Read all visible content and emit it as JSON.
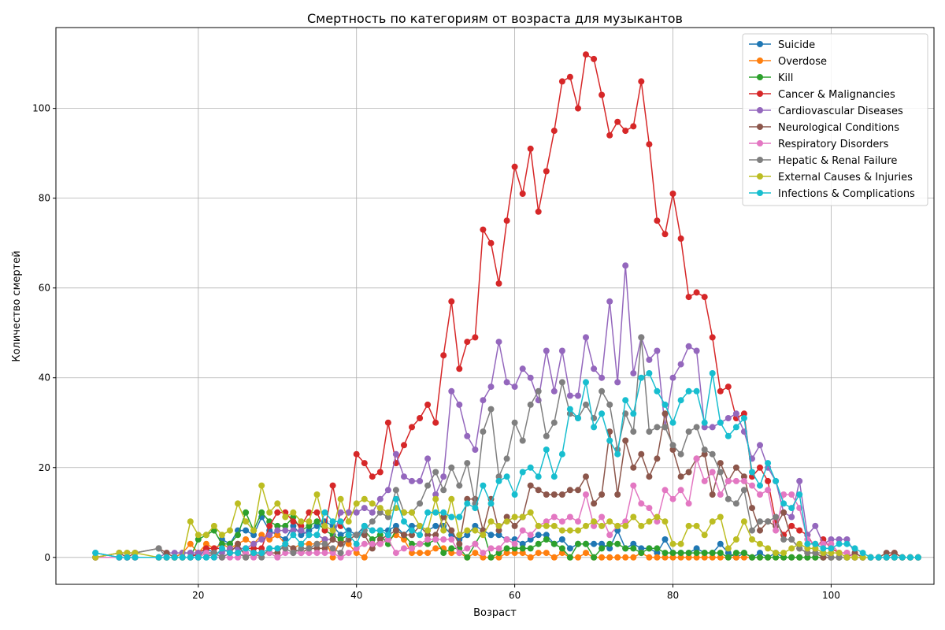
{
  "chart_data": {
    "type": "line",
    "title": "Смертность по категориям от возраста для музыкантов",
    "xlabel": "Возраст",
    "ylabel": "Количество смертей",
    "xlim": [
      2,
      113
    ],
    "ylim": [
      -6,
      118
    ],
    "xticks": [
      20,
      40,
      60,
      80,
      100
    ],
    "yticks": [
      0,
      20,
      40,
      60,
      80,
      100
    ],
    "grid": true,
    "legend_position": "top-right",
    "x": [
      7,
      10,
      11,
      12,
      15,
      16,
      17,
      18,
      19,
      20,
      21,
      22,
      23,
      24,
      25,
      26,
      27,
      28,
      29,
      30,
      31,
      32,
      33,
      34,
      35,
      36,
      37,
      38,
      39,
      40,
      41,
      42,
      43,
      44,
      45,
      46,
      47,
      48,
      49,
      50,
      51,
      52,
      53,
      54,
      55,
      56,
      57,
      58,
      59,
      60,
      61,
      62,
      63,
      64,
      65,
      66,
      67,
      68,
      69,
      70,
      71,
      72,
      73,
      74,
      75,
      76,
      77,
      78,
      79,
      80,
      81,
      82,
      83,
      84,
      85,
      86,
      87,
      88,
      89,
      90,
      91,
      92,
      93,
      94,
      95,
      96,
      97,
      98,
      99,
      100,
      101,
      102,
      103,
      104,
      105,
      106,
      107,
      108,
      109,
      110,
      111
    ],
    "series": [
      {
        "name": "Suicide",
        "color": "#1f77b4",
        "values": [
          1,
          0,
          0,
          0,
          0,
          0,
          0,
          1,
          1,
          0,
          2,
          1,
          4,
          3,
          6,
          6,
          5,
          9,
          6,
          5,
          4,
          7,
          5,
          6,
          7,
          8,
          7,
          5,
          6,
          5,
          7,
          6,
          6,
          6,
          7,
          5,
          7,
          7,
          6,
          7,
          7,
          5,
          4,
          5,
          7,
          6,
          5,
          5,
          4,
          4,
          3,
          4,
          5,
          5,
          3,
          4,
          2,
          3,
          3,
          3,
          3,
          2,
          6,
          2,
          3,
          2,
          2,
          1,
          4,
          1,
          1,
          1,
          2,
          1,
          1,
          3,
          1,
          0,
          1,
          0,
          1,
          0,
          1,
          0,
          0,
          0,
          0,
          0,
          0,
          0,
          0,
          0,
          0,
          0,
          0,
          0,
          0,
          0,
          0,
          0,
          0
        ]
      },
      {
        "name": "Overdose",
        "color": "#ff7f0e",
        "values": [
          0,
          0,
          0,
          0,
          0,
          0,
          0,
          1,
          3,
          1,
          3,
          2,
          3,
          2,
          3,
          4,
          3,
          5,
          4,
          5,
          3,
          2,
          3,
          3,
          3,
          4,
          0,
          4,
          3,
          1,
          0,
          3,
          3,
          4,
          5,
          4,
          1,
          1,
          1,
          2,
          2,
          1,
          1,
          0,
          1,
          0,
          0,
          0,
          1,
          1,
          1,
          0,
          1,
          1,
          0,
          1,
          0,
          0,
          1,
          0,
          0,
          0,
          0,
          0,
          0,
          1,
          0,
          0,
          0,
          0,
          0,
          0,
          0,
          0,
          0,
          0,
          0,
          0,
          0,
          0,
          0,
          0,
          0,
          0,
          0,
          0,
          0,
          0,
          0,
          0,
          0,
          0,
          0,
          0,
          0,
          0,
          0,
          0,
          0,
          0,
          0
        ]
      },
      {
        "name": "Kill",
        "color": "#2ca02c",
        "values": [
          0,
          0,
          0,
          0,
          0,
          0,
          0,
          0,
          0,
          4,
          5,
          6,
          3,
          3,
          5,
          10,
          6,
          10,
          8,
          7,
          7,
          9,
          6,
          7,
          8,
          6,
          5,
          4,
          5,
          5,
          6,
          4,
          5,
          3,
          6,
          5,
          3,
          3,
          3,
          4,
          1,
          2,
          2,
          0,
          3,
          6,
          0,
          1,
          2,
          2,
          2,
          2,
          3,
          4,
          3,
          2,
          0,
          3,
          3,
          0,
          2,
          3,
          3,
          2,
          2,
          1,
          2,
          2,
          1,
          1,
          1,
          1,
          1,
          1,
          1,
          1,
          0,
          1,
          1,
          0,
          0,
          0,
          0,
          0,
          0,
          0,
          0,
          0,
          0,
          0,
          0,
          0,
          0,
          0,
          0,
          0,
          0,
          0,
          0,
          0,
          0
        ]
      },
      {
        "name": "Cancer & Malignancies",
        "color": "#d62728",
        "values": [
          0,
          0,
          0,
          0,
          0,
          0,
          0,
          0,
          0,
          1,
          2,
          2,
          2,
          1,
          1,
          2,
          2,
          2,
          7,
          10,
          10,
          8,
          7,
          10,
          10,
          6,
          16,
          7,
          10,
          23,
          21,
          18,
          19,
          30,
          21,
          25,
          29,
          31,
          34,
          30,
          45,
          57,
          42,
          48,
          49,
          73,
          70,
          61,
          75,
          87,
          81,
          91,
          77,
          86,
          95,
          106,
          107,
          100,
          112,
          111,
          103,
          94,
          97,
          95,
          96,
          106,
          92,
          75,
          72,
          81,
          71,
          58,
          59,
          58,
          49,
          37,
          38,
          31,
          32,
          18,
          20,
          17,
          8,
          5,
          7,
          6,
          5,
          2,
          4,
          2,
          1,
          1,
          0,
          0,
          0,
          0,
          0,
          1,
          0,
          0,
          0
        ]
      },
      {
        "name": "Cardiovascular Diseases",
        "color": "#9467bd",
        "values": [
          0,
          0,
          0,
          0,
          0,
          1,
          1,
          1,
          1,
          1,
          1,
          1,
          1,
          2,
          2,
          2,
          3,
          4,
          5,
          6,
          6,
          6,
          6,
          5,
          5,
          4,
          4,
          10,
          10,
          10,
          11,
          10,
          13,
          15,
          23,
          18,
          17,
          17,
          22,
          14,
          18,
          37,
          34,
          27,
          24,
          35,
          38,
          48,
          39,
          38,
          42,
          40,
          35,
          46,
          37,
          46,
          36,
          36,
          49,
          42,
          40,
          57,
          39,
          65,
          41,
          49,
          44,
          46,
          29,
          40,
          43,
          47,
          46,
          29,
          29,
          30,
          31,
          32,
          28,
          22,
          25,
          20,
          17,
          10,
          9,
          17,
          5,
          7,
          3,
          4,
          4,
          4,
          1,
          0,
          0,
          0,
          0,
          0,
          0,
          0,
          0
        ]
      },
      {
        "name": "Neurological Conditions",
        "color": "#8c564b",
        "values": [
          0,
          1,
          0,
          1,
          2,
          1,
          0,
          0,
          0,
          0,
          1,
          1,
          0,
          1,
          3,
          0,
          1,
          1,
          1,
          1,
          3,
          2,
          1,
          2,
          2,
          2,
          4,
          3,
          4,
          5,
          5,
          2,
          4,
          5,
          6,
          5,
          5,
          7,
          5,
          5,
          9,
          6,
          3,
          13,
          13,
          6,
          13,
          6,
          9,
          7,
          9,
          16,
          15,
          14,
          14,
          14,
          15,
          15,
          18,
          12,
          14,
          28,
          14,
          26,
          20,
          23,
          18,
          22,
          32,
          24,
          18,
          19,
          22,
          23,
          14,
          21,
          17,
          20,
          18,
          11,
          6,
          8,
          7,
          10,
          4,
          2,
          1,
          1,
          0,
          0,
          0,
          0,
          1,
          0,
          0,
          0,
          1,
          1,
          0,
          0,
          0
        ]
      },
      {
        "name": "Respiratory Disorders",
        "color": "#e377c2",
        "values": [
          0,
          0,
          0,
          0,
          0,
          0,
          0,
          0,
          0,
          0,
          1,
          0,
          0,
          0,
          0,
          1,
          0,
          1,
          1,
          0,
          1,
          1,
          1,
          1,
          1,
          1,
          1,
          0,
          1,
          2,
          3,
          3,
          3,
          4,
          1,
          2,
          2,
          3,
          4,
          4,
          4,
          4,
          1,
          2,
          3,
          1,
          2,
          2,
          4,
          3,
          6,
          5,
          7,
          8,
          9,
          8,
          9,
          8,
          14,
          7,
          9,
          5,
          7,
          8,
          16,
          12,
          11,
          8,
          15,
          13,
          15,
          12,
          22,
          17,
          19,
          14,
          17,
          17,
          17,
          16,
          14,
          15,
          6,
          14,
          14,
          11,
          4,
          3,
          3,
          3,
          1,
          1,
          0,
          0,
          0,
          0,
          0,
          0,
          0,
          0,
          0
        ]
      },
      {
        "name": "Hepatic & Renal Failure",
        "color": "#7f7f7f",
        "values": [
          0,
          1,
          1,
          1,
          2,
          0,
          0,
          0,
          0,
          0,
          0,
          1,
          0,
          1,
          1,
          0,
          1,
          0,
          2,
          2,
          2,
          1,
          2,
          2,
          3,
          3,
          2,
          1,
          5,
          5,
          6,
          8,
          10,
          9,
          15,
          10,
          10,
          12,
          16,
          19,
          15,
          20,
          16,
          21,
          12,
          28,
          33,
          18,
          22,
          30,
          26,
          34,
          37,
          27,
          30,
          39,
          32,
          31,
          34,
          31,
          37,
          34,
          24,
          32,
          28,
          49,
          28,
          29,
          29,
          25,
          23,
          28,
          29,
          24,
          23,
          19,
          13,
          12,
          15,
          6,
          8,
          8,
          9,
          4,
          4,
          2,
          1,
          1,
          1,
          0,
          0,
          0,
          0,
          0,
          0,
          0,
          0,
          0,
          0,
          0,
          0
        ]
      },
      {
        "name": "External Causes & Injuries",
        "color": "#bcbd22",
        "values": [
          0,
          1,
          1,
          1,
          0,
          0,
          0,
          0,
          8,
          5,
          5,
          7,
          5,
          6,
          12,
          8,
          6,
          16,
          10,
          12,
          9,
          10,
          8,
          8,
          14,
          7,
          6,
          13,
          8,
          12,
          13,
          12,
          11,
          10,
          11,
          10,
          10,
          7,
          6,
          13,
          6,
          13,
          5,
          6,
          6,
          5,
          8,
          7,
          8,
          9,
          9,
          10,
          7,
          7,
          7,
          6,
          6,
          6,
          7,
          8,
          7,
          8,
          7,
          7,
          9,
          7,
          8,
          9,
          8,
          3,
          3,
          7,
          7,
          5,
          8,
          9,
          2,
          4,
          8,
          4,
          3,
          2,
          1,
          1,
          2,
          3,
          2,
          2,
          1,
          1,
          1,
          0,
          0,
          0,
          0,
          0,
          0,
          0,
          0,
          0,
          0
        ]
      },
      {
        "name": "Infections & Complications",
        "color": "#17becf",
        "values": [
          1,
          0,
          0,
          0,
          0,
          0,
          0,
          0,
          0,
          0,
          0,
          0,
          2,
          1,
          1,
          2,
          1,
          1,
          2,
          2,
          3,
          5,
          3,
          5,
          5,
          10,
          8,
          8,
          5,
          3,
          7,
          6,
          6,
          5,
          13,
          8,
          6,
          5,
          10,
          10,
          10,
          9,
          9,
          12,
          11,
          16,
          12,
          17,
          18,
          14,
          19,
          20,
          18,
          24,
          18,
          23,
          33,
          31,
          39,
          29,
          32,
          26,
          23,
          35,
          32,
          40,
          41,
          37,
          34,
          30,
          35,
          37,
          37,
          30,
          41,
          30,
          27,
          29,
          31,
          19,
          16,
          21,
          17,
          12,
          11,
          14,
          3,
          3,
          2,
          2,
          3,
          3,
          2,
          1,
          0,
          0,
          0,
          0,
          0,
          0,
          0
        ]
      }
    ]
  }
}
